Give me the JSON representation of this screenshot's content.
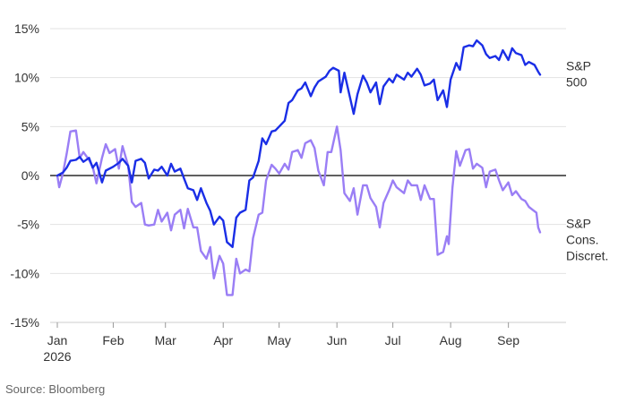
{
  "chart_data": {
    "type": "line",
    "title": "",
    "xlabel": "",
    "ylabel": "",
    "ylim": [
      -15,
      15
    ],
    "y_ticks": [
      15,
      10,
      5,
      0,
      -5,
      -10,
      -15
    ],
    "y_tick_labels": [
      "15%",
      "10%",
      "5%",
      "0%",
      "-5%",
      "-10%",
      "-15%"
    ],
    "x_ticks": [
      {
        "date": "2026-01-02",
        "label": "Jan",
        "sublabel": "2026"
      },
      {
        "date": "2026-02-01",
        "label": "Feb",
        "sublabel": ""
      },
      {
        "date": "2026-03-01",
        "label": "Mar",
        "sublabel": ""
      },
      {
        "date": "2026-04-01",
        "label": "Apr",
        "sublabel": ""
      },
      {
        "date": "2026-05-01",
        "label": "May",
        "sublabel": ""
      },
      {
        "date": "2026-06-01",
        "label": "Jun",
        "sublabel": ""
      },
      {
        "date": "2026-07-01",
        "label": "Jul",
        "sublabel": ""
      },
      {
        "date": "2026-08-01",
        "label": "Aug",
        "sublabel": ""
      },
      {
        "date": "2026-09-01",
        "label": "Sep",
        "sublabel": ""
      }
    ],
    "xlim": [
      "2026-01-02",
      "2026-09-30"
    ],
    "zero_line": true,
    "grid": "horizontal",
    "series": [
      {
        "name": "S&P 500",
        "label_lines": [
          "S&P",
          "500"
        ],
        "color": "#1a2ee6",
        "points": [
          [
            "2026-01-02",
            0
          ],
          [
            "2026-01-05",
            0.3
          ],
          [
            "2026-01-07",
            0.8
          ],
          [
            "2026-01-09",
            1.5
          ],
          [
            "2026-01-12",
            1.6
          ],
          [
            "2026-01-14",
            1.9
          ],
          [
            "2026-01-16",
            1.4
          ],
          [
            "2026-01-19",
            1.8
          ],
          [
            "2026-01-21",
            0.8
          ],
          [
            "2026-01-23",
            1.3
          ],
          [
            "2026-01-26",
            -0.7
          ],
          [
            "2026-01-28",
            0.5
          ],
          [
            "2026-02-01",
            0.9
          ],
          [
            "2026-02-04",
            1.3
          ],
          [
            "2026-02-06",
            1.7
          ],
          [
            "2026-02-09",
            1.0
          ],
          [
            "2026-02-11",
            -0.7
          ],
          [
            "2026-02-13",
            1.5
          ],
          [
            "2026-02-16",
            1.7
          ],
          [
            "2026-02-18",
            1.3
          ],
          [
            "2026-02-20",
            -0.3
          ],
          [
            "2026-02-23",
            0.6
          ],
          [
            "2026-02-25",
            0.5
          ],
          [
            "2026-02-27",
            0.9
          ],
          [
            "2026-03-02",
            0.0
          ],
          [
            "2026-03-04",
            1.2
          ],
          [
            "2026-03-06",
            0.4
          ],
          [
            "2026-03-09",
            0.7
          ],
          [
            "2026-03-11",
            -0.3
          ],
          [
            "2026-03-13",
            -1.3
          ],
          [
            "2026-03-16",
            -1.5
          ],
          [
            "2026-03-18",
            -2.5
          ],
          [
            "2026-03-20",
            -1.3
          ],
          [
            "2026-03-23",
            -2.8
          ],
          [
            "2026-03-25",
            -3.6
          ],
          [
            "2026-03-27",
            -5.0
          ],
          [
            "2026-03-30",
            -4.2
          ],
          [
            "2026-04-01",
            -4.6
          ],
          [
            "2026-04-03",
            -6.8
          ],
          [
            "2026-04-06",
            -7.3
          ],
          [
            "2026-04-08",
            -4.3
          ],
          [
            "2026-04-10",
            -3.8
          ],
          [
            "2026-04-13",
            -3.5
          ],
          [
            "2026-04-15",
            -0.5
          ],
          [
            "2026-04-17",
            -0.2
          ],
          [
            "2026-04-20",
            1.5
          ],
          [
            "2026-04-22",
            3.8
          ],
          [
            "2026-04-24",
            3.2
          ],
          [
            "2026-04-27",
            4.5
          ],
          [
            "2026-04-29",
            4.6
          ],
          [
            "2026-05-01",
            5.0
          ],
          [
            "2026-05-04",
            5.6
          ],
          [
            "2026-05-06",
            7.4
          ],
          [
            "2026-05-08",
            7.7
          ],
          [
            "2026-05-11",
            8.7
          ],
          [
            "2026-05-13",
            8.9
          ],
          [
            "2026-05-15",
            9.5
          ],
          [
            "2026-05-18",
            8.1
          ],
          [
            "2026-05-20",
            9.0
          ],
          [
            "2026-05-22",
            9.6
          ],
          [
            "2026-05-26",
            10.1
          ],
          [
            "2026-05-28",
            10.7
          ],
          [
            "2026-05-30",
            11.0
          ],
          [
            "2026-06-02",
            10.7
          ],
          [
            "2026-06-03",
            8.5
          ],
          [
            "2026-06-05",
            10.5
          ],
          [
            "2026-06-08",
            8.0
          ],
          [
            "2026-06-10",
            6.3
          ],
          [
            "2026-06-12",
            8.3
          ],
          [
            "2026-06-15",
            10.2
          ],
          [
            "2026-06-17",
            9.5
          ],
          [
            "2026-06-19",
            8.5
          ],
          [
            "2026-06-22",
            9.5
          ],
          [
            "2026-06-24",
            7.3
          ],
          [
            "2026-06-26",
            9.1
          ],
          [
            "2026-06-29",
            9.9
          ],
          [
            "2026-07-01",
            9.5
          ],
          [
            "2026-07-03",
            10.3
          ],
          [
            "2026-07-07",
            9.8
          ],
          [
            "2026-07-09",
            10.5
          ],
          [
            "2026-07-11",
            10.1
          ],
          [
            "2026-07-14",
            10.9
          ],
          [
            "2026-07-16",
            10.3
          ],
          [
            "2026-07-18",
            9.2
          ],
          [
            "2026-07-21",
            9.4
          ],
          [
            "2026-07-23",
            9.8
          ],
          [
            "2026-07-25",
            7.7
          ],
          [
            "2026-07-28",
            8.7
          ],
          [
            "2026-07-30",
            7.0
          ],
          [
            "2026-08-01",
            9.8
          ],
          [
            "2026-08-04",
            11.5
          ],
          [
            "2026-08-06",
            10.8
          ],
          [
            "2026-08-08",
            13.1
          ],
          [
            "2026-08-11",
            13.3
          ],
          [
            "2026-08-13",
            13.2
          ],
          [
            "2026-08-15",
            13.8
          ],
          [
            "2026-08-18",
            13.3
          ],
          [
            "2026-08-20",
            12.4
          ],
          [
            "2026-08-22",
            12.0
          ],
          [
            "2026-08-25",
            12.2
          ],
          [
            "2026-08-27",
            11.8
          ],
          [
            "2026-08-29",
            12.8
          ],
          [
            "2026-09-01",
            11.8
          ],
          [
            "2026-09-03",
            13.0
          ],
          [
            "2026-09-05",
            12.5
          ],
          [
            "2026-09-08",
            12.3
          ],
          [
            "2026-09-10",
            11.3
          ],
          [
            "2026-09-12",
            11.6
          ],
          [
            "2026-09-15",
            11.3
          ],
          [
            "2026-09-17",
            10.6
          ],
          [
            "2026-09-18",
            10.3
          ]
        ]
      },
      {
        "name": "S&P Cons. Discret.",
        "label_lines": [
          "S&P",
          "Cons.",
          "Discret."
        ],
        "color": "#9a7ef5",
        "points": [
          [
            "2026-01-02",
            0
          ],
          [
            "2026-01-03",
            -1.2
          ],
          [
            "2026-01-05",
            0.2
          ],
          [
            "2026-01-07",
            2.2
          ],
          [
            "2026-01-09",
            4.5
          ],
          [
            "2026-01-12",
            4.6
          ],
          [
            "2026-01-14",
            1.8
          ],
          [
            "2026-01-16",
            2.4
          ],
          [
            "2026-01-19",
            1.6
          ],
          [
            "2026-01-21",
            0.9
          ],
          [
            "2026-01-23",
            -0.8
          ],
          [
            "2026-01-26",
            1.8
          ],
          [
            "2026-01-28",
            3.2
          ],
          [
            "2026-01-30",
            2.3
          ],
          [
            "2026-02-02",
            2.7
          ],
          [
            "2026-02-04",
            0.7
          ],
          [
            "2026-02-06",
            3.0
          ],
          [
            "2026-02-09",
            1.0
          ],
          [
            "2026-02-11",
            -2.7
          ],
          [
            "2026-02-13",
            -3.2
          ],
          [
            "2026-02-16",
            -2.8
          ],
          [
            "2026-02-18",
            -5.0
          ],
          [
            "2026-02-20",
            -5.1
          ],
          [
            "2026-02-23",
            -5.0
          ],
          [
            "2026-02-25",
            -3.5
          ],
          [
            "2026-02-27",
            -4.7
          ],
          [
            "2026-03-02",
            -3.8
          ],
          [
            "2026-03-04",
            -5.6
          ],
          [
            "2026-03-06",
            -4.0
          ],
          [
            "2026-03-09",
            -3.5
          ],
          [
            "2026-03-11",
            -5.4
          ],
          [
            "2026-03-13",
            -3.4
          ],
          [
            "2026-03-16",
            -5.3
          ],
          [
            "2026-03-18",
            -5.3
          ],
          [
            "2026-03-20",
            -7.7
          ],
          [
            "2026-03-23",
            -8.5
          ],
          [
            "2026-03-25",
            -7.3
          ],
          [
            "2026-03-27",
            -10.5
          ],
          [
            "2026-03-30",
            -8.2
          ],
          [
            "2026-04-01",
            -9.0
          ],
          [
            "2026-04-03",
            -12.2
          ],
          [
            "2026-04-06",
            -12.2
          ],
          [
            "2026-04-08",
            -8.5
          ],
          [
            "2026-04-10",
            -10.0
          ],
          [
            "2026-04-13",
            -9.6
          ],
          [
            "2026-04-15",
            -9.8
          ],
          [
            "2026-04-17",
            -6.4
          ],
          [
            "2026-04-20",
            -4.0
          ],
          [
            "2026-04-22",
            -3.8
          ],
          [
            "2026-04-24",
            -0.5
          ],
          [
            "2026-04-27",
            1.1
          ],
          [
            "2026-04-29",
            0.7
          ],
          [
            "2026-05-01",
            0.2
          ],
          [
            "2026-05-04",
            1.2
          ],
          [
            "2026-05-06",
            0.6
          ],
          [
            "2026-05-08",
            2.4
          ],
          [
            "2026-05-11",
            2.6
          ],
          [
            "2026-05-13",
            1.8
          ],
          [
            "2026-05-15",
            3.3
          ],
          [
            "2026-05-18",
            3.6
          ],
          [
            "2026-05-20",
            2.8
          ],
          [
            "2026-05-22",
            0.5
          ],
          [
            "2026-05-25",
            -1.0
          ],
          [
            "2026-05-27",
            2.4
          ],
          [
            "2026-05-29",
            2.4
          ],
          [
            "2026-06-01",
            5.0
          ],
          [
            "2026-06-03",
            2.6
          ],
          [
            "2026-06-05",
            -1.8
          ],
          [
            "2026-06-08",
            -2.6
          ],
          [
            "2026-06-10",
            -1.3
          ],
          [
            "2026-06-12",
            -4.0
          ],
          [
            "2026-06-15",
            -1.0
          ],
          [
            "2026-06-17",
            -1.0
          ],
          [
            "2026-06-19",
            -2.3
          ],
          [
            "2026-06-22",
            -3.2
          ],
          [
            "2026-06-24",
            -5.3
          ],
          [
            "2026-06-26",
            -2.8
          ],
          [
            "2026-06-29",
            -1.5
          ],
          [
            "2026-07-01",
            -0.5
          ],
          [
            "2026-07-03",
            -1.2
          ],
          [
            "2026-07-07",
            -1.8
          ],
          [
            "2026-07-09",
            -0.5
          ],
          [
            "2026-07-11",
            -1.0
          ],
          [
            "2026-07-14",
            -1.0
          ],
          [
            "2026-07-16",
            -2.5
          ],
          [
            "2026-07-18",
            -1.0
          ],
          [
            "2026-07-21",
            -2.4
          ],
          [
            "2026-07-23",
            -2.4
          ],
          [
            "2026-07-25",
            -8.1
          ],
          [
            "2026-07-28",
            -7.8
          ],
          [
            "2026-07-30",
            -6.2
          ],
          [
            "2026-07-31",
            -7.0
          ],
          [
            "2026-08-02",
            -1.2
          ],
          [
            "2026-08-04",
            2.5
          ],
          [
            "2026-08-06",
            1.0
          ],
          [
            "2026-08-09",
            2.6
          ],
          [
            "2026-08-11",
            2.7
          ],
          [
            "2026-08-13",
            0.7
          ],
          [
            "2026-08-15",
            1.2
          ],
          [
            "2026-08-18",
            0.8
          ],
          [
            "2026-08-20",
            -1.2
          ],
          [
            "2026-08-22",
            0.4
          ],
          [
            "2026-08-25",
            0.6
          ],
          [
            "2026-08-27",
            -0.5
          ],
          [
            "2026-08-29",
            -1.5
          ],
          [
            "2026-09-01",
            -0.7
          ],
          [
            "2026-09-03",
            -2.0
          ],
          [
            "2026-09-05",
            -1.6
          ],
          [
            "2026-09-08",
            -2.4
          ],
          [
            "2026-09-10",
            -2.6
          ],
          [
            "2026-09-12",
            -3.2
          ],
          [
            "2026-09-14",
            -3.5
          ],
          [
            "2026-09-16",
            -3.8
          ],
          [
            "2026-09-17",
            -5.3
          ],
          [
            "2026-09-18",
            -5.8
          ]
        ]
      }
    ]
  },
  "footer": {
    "source": "Source: Bloomberg"
  }
}
